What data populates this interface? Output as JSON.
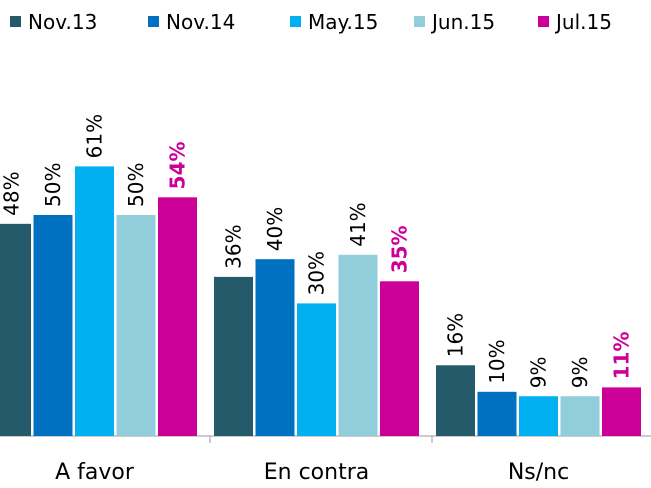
{
  "chart_data": {
    "type": "bar",
    "categories": [
      "A favor",
      "En contra",
      "Ns/nc"
    ],
    "series": [
      {
        "name": "Nov.13",
        "color": "#255a6a",
        "values": [
          48,
          36,
          16
        ],
        "value_labels": [
          "48%",
          "36%",
          "16%"
        ]
      },
      {
        "name": "Nov.14",
        "color": "#0070c0",
        "values": [
          50,
          40,
          10
        ],
        "value_labels": [
          "50%",
          "40%",
          "10%"
        ]
      },
      {
        "name": "May.15",
        "color": "#00b0f0",
        "values": [
          61,
          30,
          9
        ],
        "value_labels": [
          "61%",
          "30%",
          "9%"
        ]
      },
      {
        "name": "Jun.15",
        "color": "#92cddc",
        "values": [
          50,
          41,
          9
        ],
        "value_labels": [
          "50%",
          "41%",
          "9%"
        ]
      },
      {
        "name": "Jul.15",
        "color": "#cc0099",
        "values": [
          54,
          35,
          11
        ],
        "value_labels": [
          "54%",
          "35%",
          "11%"
        ]
      }
    ]
  }
}
